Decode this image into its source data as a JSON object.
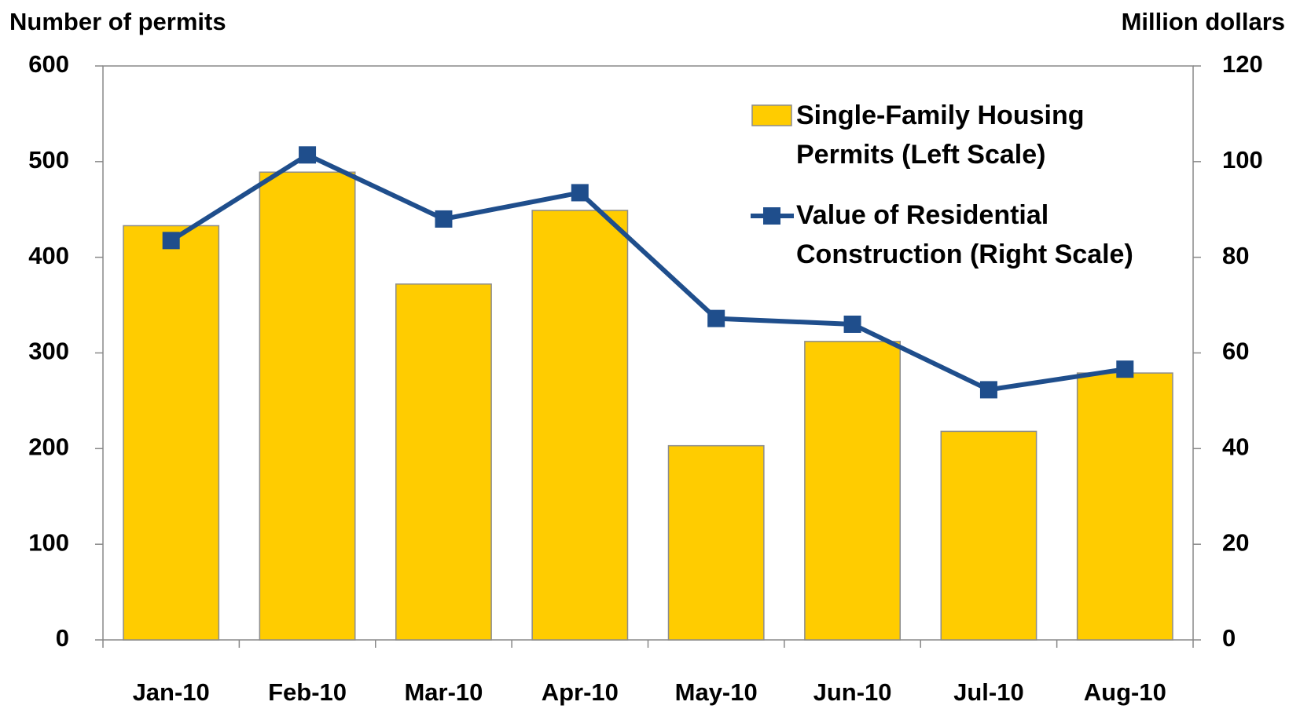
{
  "chart_data": {
    "type": "bar_line",
    "y_axis_title": "Number of permits",
    "y2_axis_title": "Million dollars",
    "categories": [
      "Jan-10",
      "Feb-10",
      "Mar-10",
      "Apr-10",
      "May-10",
      "Jun-10",
      "Jul-10",
      "Aug-10"
    ],
    "series": [
      {
        "name": "Single-Family Housing Permits (Left Scale)",
        "type": "bar",
        "color": "#FFCC00",
        "values": [
          433,
          489,
          372,
          449,
          203,
          312,
          218,
          279
        ]
      },
      {
        "name": "Value of Residential Construction (Right Scale)",
        "type": "line",
        "axis": "y2",
        "color": "#1F4E8C",
        "values": [
          83.5,
          101.4,
          88,
          93.5,
          67.2,
          66,
          52.3,
          56.6
        ]
      }
    ],
    "ylim": [
      0,
      600
    ],
    "yticks": [
      0,
      100,
      200,
      300,
      400,
      500,
      600
    ],
    "y2lim": [
      0,
      120
    ],
    "y2ticks": [
      0,
      20,
      40,
      60,
      80,
      100,
      120
    ],
    "legend": "upper right"
  }
}
